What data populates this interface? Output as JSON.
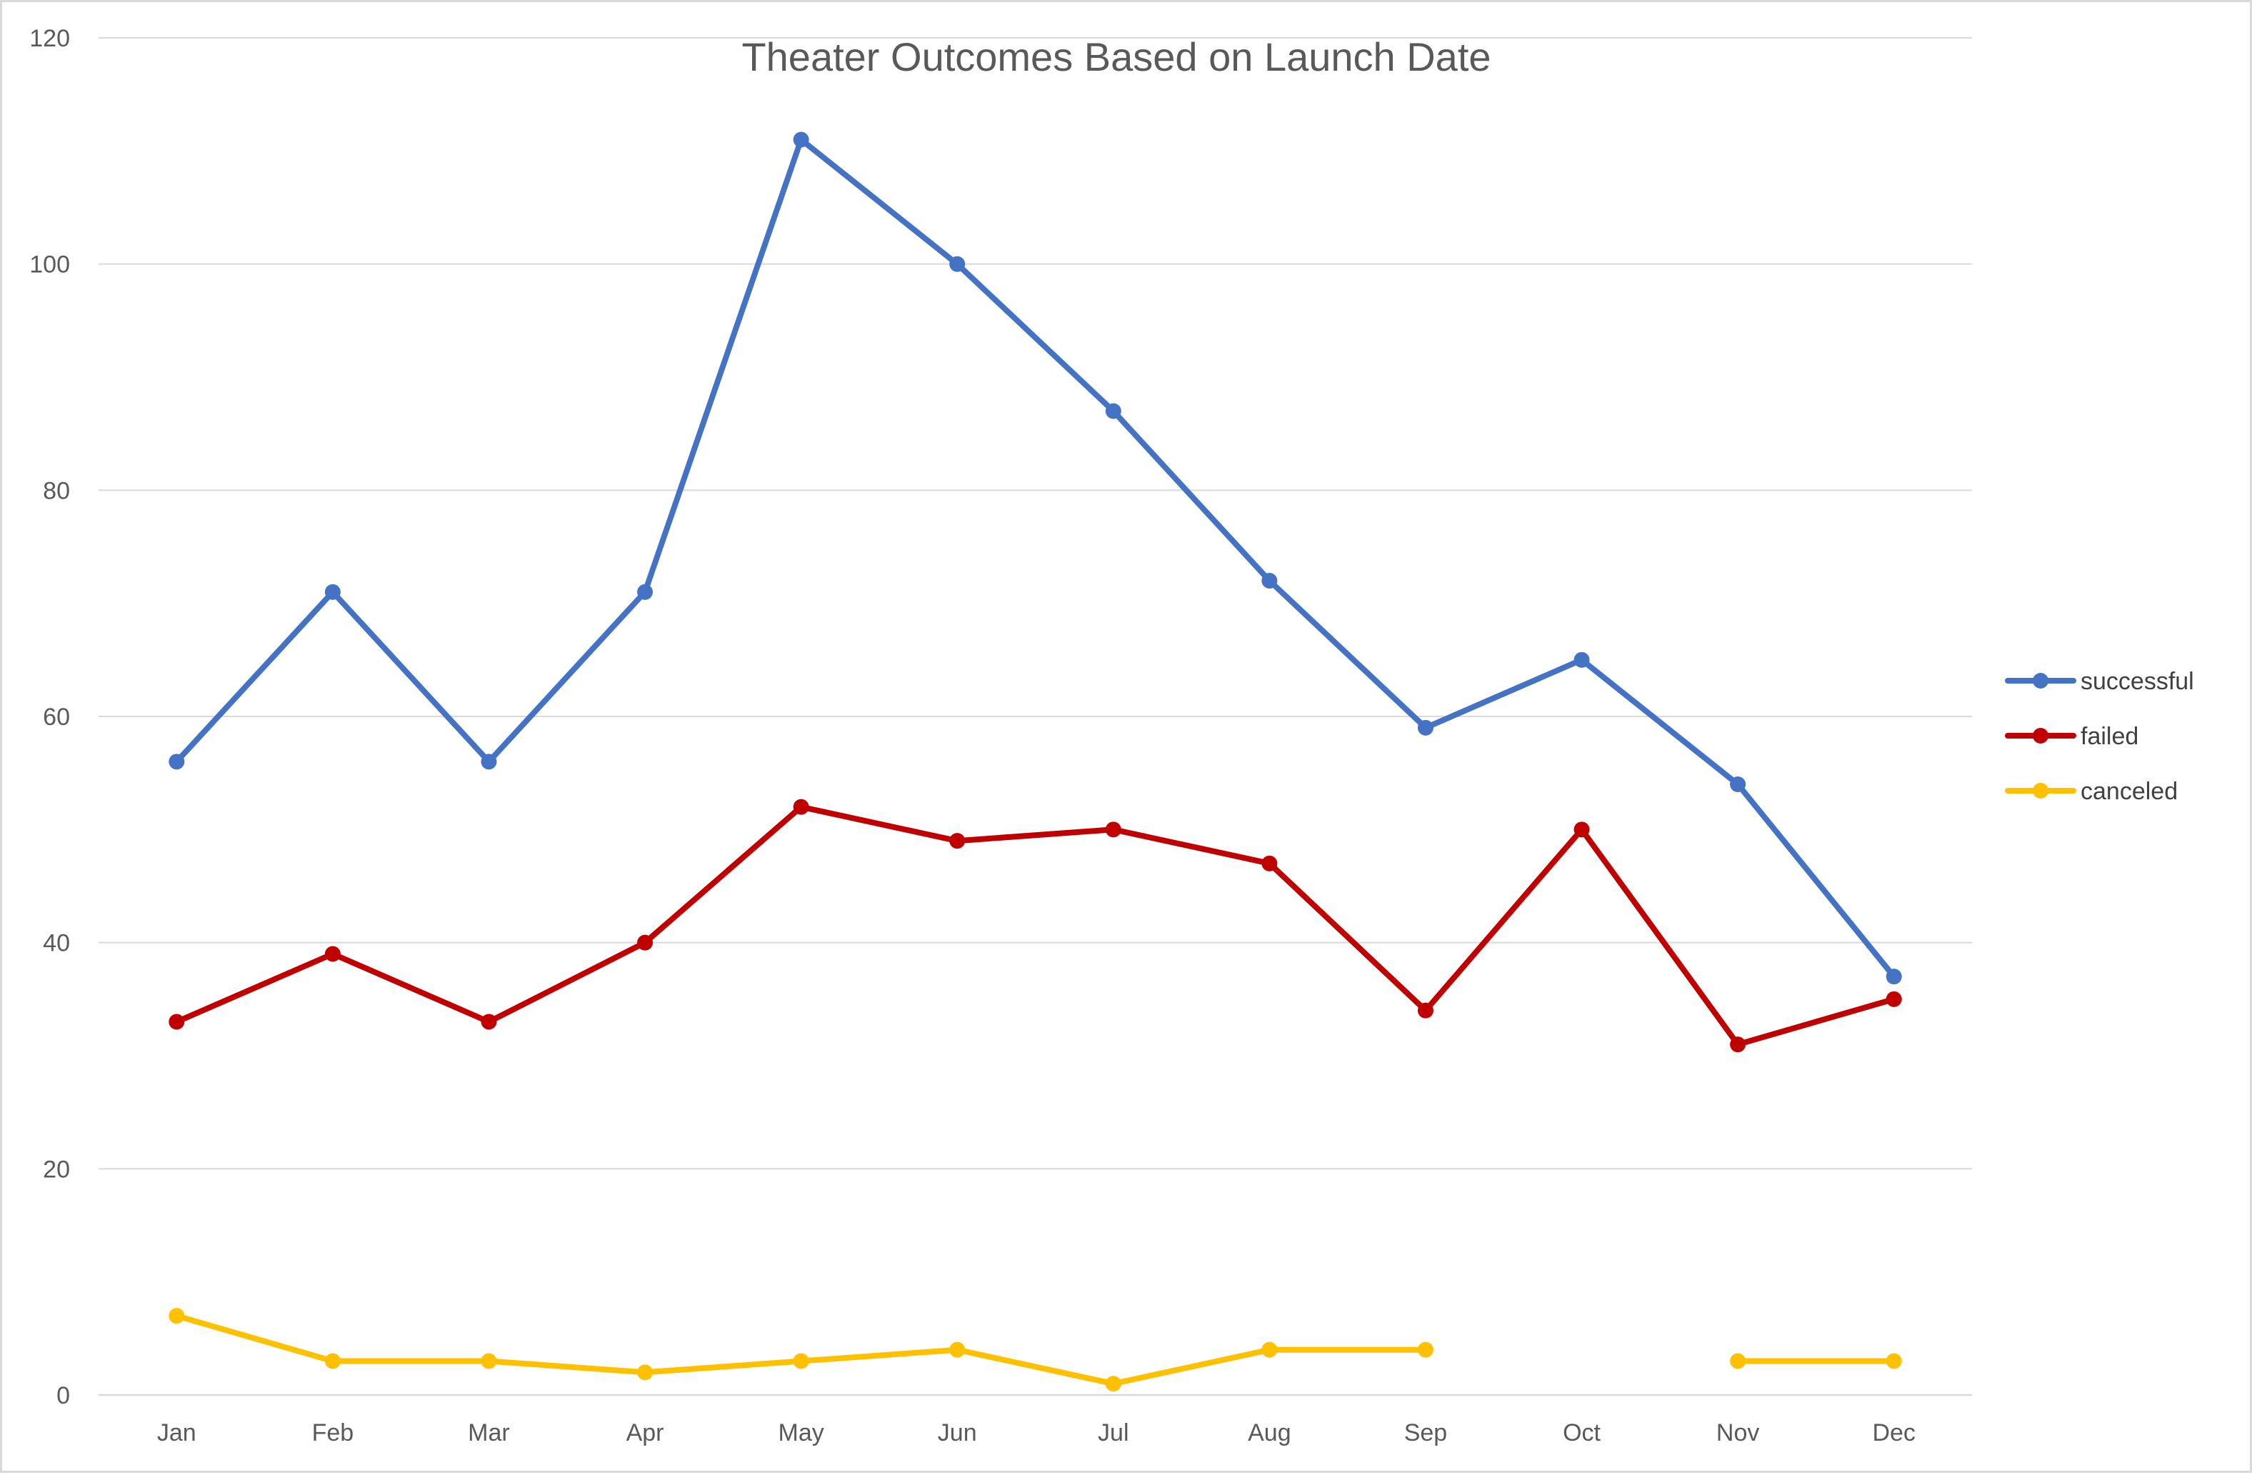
{
  "chart_data": {
    "type": "line",
    "title": "Theater Outcomes Based on Launch Date",
    "xlabel": "",
    "ylabel": "",
    "categories": [
      "Jan",
      "Feb",
      "Mar",
      "Apr",
      "May",
      "Jun",
      "Jul",
      "Aug",
      "Sep",
      "Oct",
      "Nov",
      "Dec"
    ],
    "ylim": [
      0,
      120
    ],
    "yticks": [
      0,
      20,
      40,
      60,
      80,
      100,
      120
    ],
    "grid": true,
    "legend_position": "right",
    "series": [
      {
        "name": "successful",
        "color": "#4472C4",
        "values": [
          56,
          71,
          56,
          71,
          111,
          100,
          87,
          72,
          59,
          65,
          54,
          37
        ]
      },
      {
        "name": "failed",
        "color": "#C00000",
        "values": [
          33,
          39,
          33,
          40,
          52,
          49,
          50,
          47,
          34,
          50,
          31,
          35
        ]
      },
      {
        "name": "canceled",
        "color": "#FFC000",
        "values": [
          7,
          3,
          3,
          2,
          3,
          4,
          1,
          4,
          4,
          null,
          3,
          3
        ]
      }
    ]
  }
}
